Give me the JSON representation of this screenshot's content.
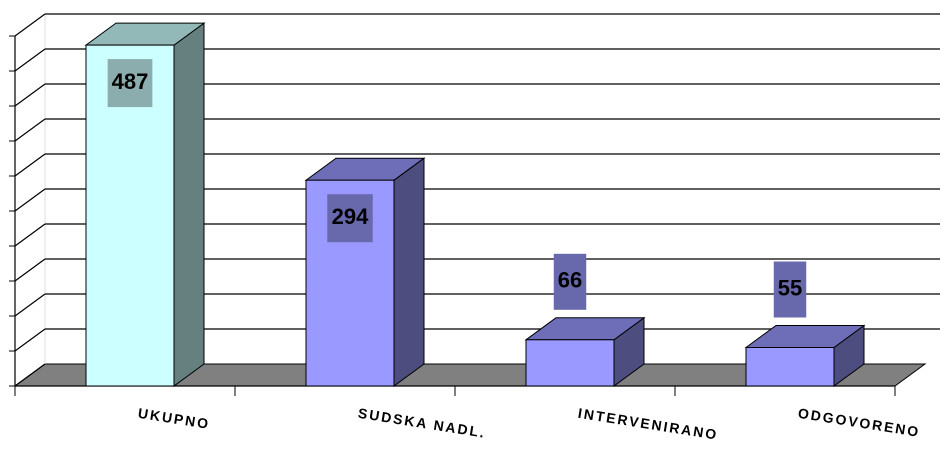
{
  "chart_data": {
    "type": "bar3d",
    "categories": [
      "UKUPNO",
      "SUDSKA NADL.",
      "INTERVENIRANO",
      "ODGOVORENO"
    ],
    "values": [
      487,
      294,
      66,
      55
    ],
    "colors": [
      "#ccffff",
      "#9999ff",
      "#9999ff",
      "#9999ff"
    ],
    "ylim": [
      0,
      500
    ],
    "yticks": [
      0,
      50,
      100,
      150,
      200,
      250,
      300,
      350,
      400,
      450,
      500
    ],
    "grid": true
  }
}
